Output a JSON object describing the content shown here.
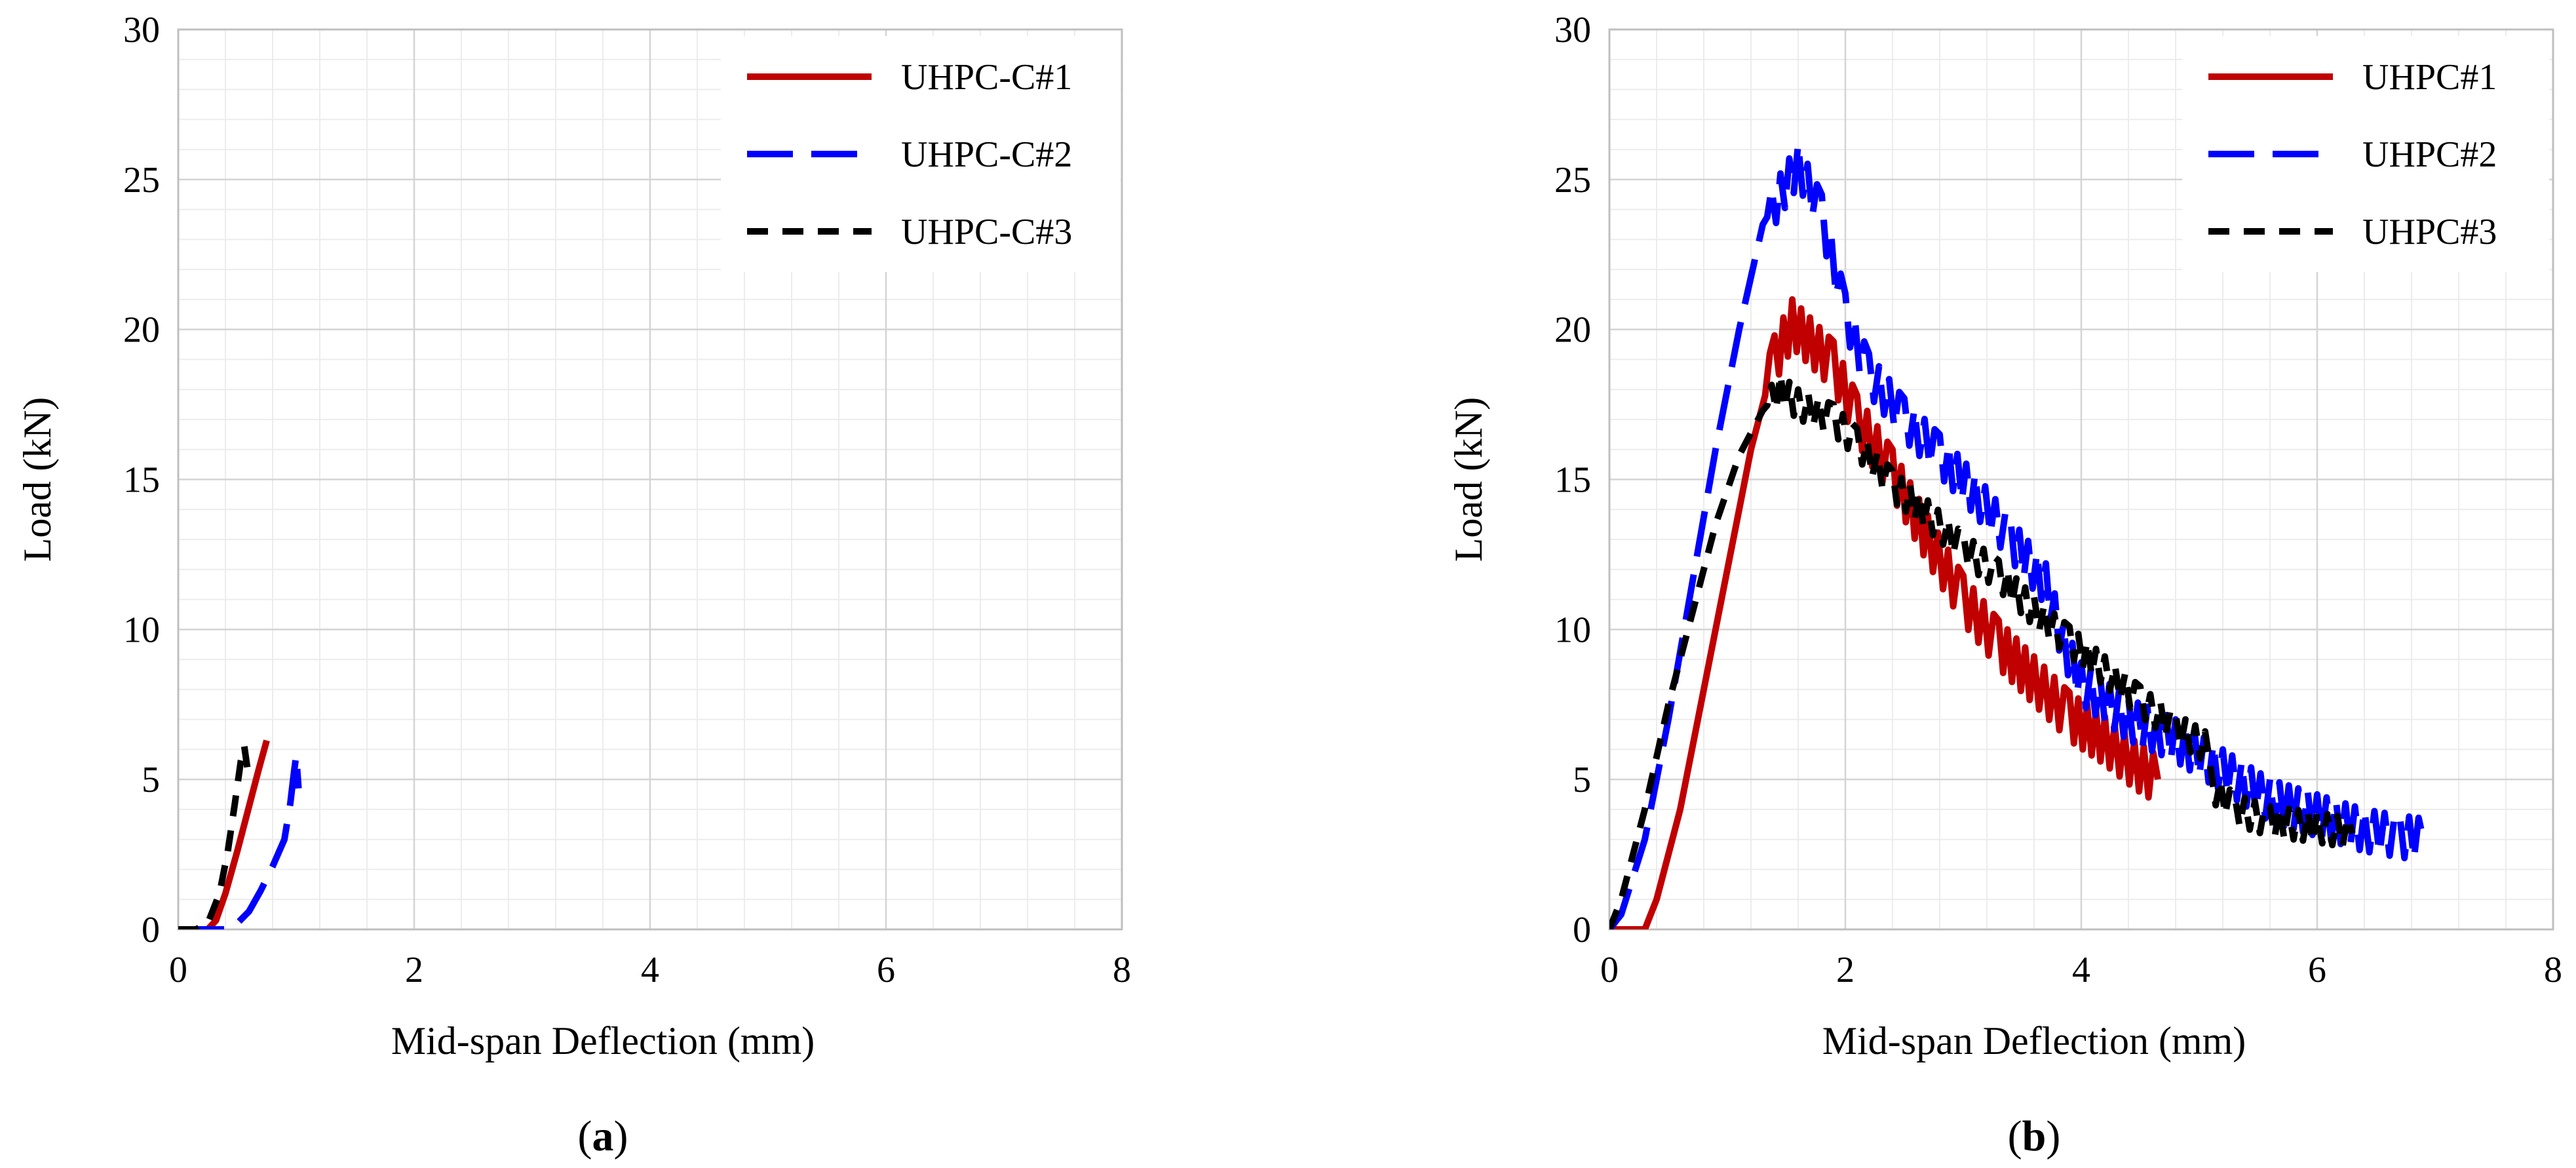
{
  "chart_data": [
    {
      "type": "line",
      "panel_label": "a",
      "caption_open": "(",
      "caption_close": ")",
      "xlabel": "Mid-span Deflection (mm)",
      "ylabel": "Load (kN)",
      "xlim": [
        0,
        8
      ],
      "ylim": [
        0,
        30
      ],
      "xticks": [
        0,
        2,
        4,
        6,
        8
      ],
      "yticks": [
        0,
        5,
        10,
        15,
        20,
        25,
        30
      ],
      "grid": true,
      "legend_position": "top-right",
      "series": [
        {
          "name": "UHPC-C#1",
          "color": "#c00000",
          "style": "solid",
          "points": [
            [
              0,
              0
            ],
            [
              0.25,
              0
            ],
            [
              0.32,
              0.3
            ],
            [
              0.4,
              1.2
            ],
            [
              0.5,
              2.6
            ],
            [
              0.6,
              4.1
            ],
            [
              0.68,
              5.3
            ],
            [
              0.75,
              6.3
            ]
          ]
        },
        {
          "name": "UHPC-C#2",
          "color": "#0000ff",
          "style": "long-dash",
          "points": [
            [
              0,
              0
            ],
            [
              0.3,
              0
            ],
            [
              0.45,
              0
            ],
            [
              0.5,
              0.2
            ],
            [
              0.6,
              0.6
            ],
            [
              0.7,
              1.3
            ],
            [
              0.8,
              2.1
            ],
            [
              0.9,
              3.0
            ],
            [
              0.95,
              4.2
            ],
            [
              0.98,
              5.2
            ],
            [
              1.0,
              5.8
            ],
            [
              1.02,
              4.7
            ]
          ]
        },
        {
          "name": "UHPC-C#3",
          "color": "#000000",
          "style": "short-dash",
          "points": [
            [
              0,
              0
            ],
            [
              0.15,
              0
            ],
            [
              0.25,
              0.2
            ],
            [
              0.35,
              1.2
            ],
            [
              0.42,
              2.6
            ],
            [
              0.48,
              4.2
            ],
            [
              0.53,
              5.6
            ],
            [
              0.56,
              6.1
            ],
            [
              0.6,
              5.0
            ]
          ]
        }
      ]
    },
    {
      "type": "line",
      "panel_label": "b",
      "caption_open": "(",
      "caption_close": ")",
      "xlabel": "Mid-span Deflection (mm)",
      "ylabel": "Load (kN)",
      "xlim": [
        0,
        8
      ],
      "ylim": [
        0,
        30
      ],
      "xticks": [
        0,
        2,
        4,
        6,
        8
      ],
      "yticks": [
        0,
        5,
        10,
        15,
        20,
        25,
        30
      ],
      "grid": true,
      "legend_position": "top-right",
      "series": [
        {
          "name": "UHPC#1",
          "color": "#c00000",
          "style": "solid",
          "points": [
            [
              0,
              0
            ],
            [
              0.3,
              0
            ],
            [
              0.4,
              1
            ],
            [
              0.6,
              4
            ],
            [
              0.8,
              8
            ],
            [
              1.0,
              12
            ],
            [
              1.2,
              16
            ],
            [
              1.4,
              19
            ],
            [
              1.55,
              20.2
            ],
            [
              1.7,
              19.6
            ],
            [
              1.9,
              18.8
            ],
            [
              2.1,
              17.0
            ],
            [
              2.4,
              15.2
            ],
            [
              2.7,
              13.0
            ],
            [
              3.0,
              11.0
            ],
            [
              3.3,
              9.5
            ],
            [
              3.6,
              8.3
            ],
            [
              3.9,
              7.1
            ],
            [
              4.2,
              6.3
            ],
            [
              4.45,
              5.5
            ],
            [
              4.65,
              5.0
            ]
          ],
          "oscillation": 0.8
        },
        {
          "name": "UHPC#2",
          "color": "#0000ff",
          "style": "long-dash",
          "points": [
            [
              0,
              0
            ],
            [
              0.1,
              0.5
            ],
            [
              0.3,
              3
            ],
            [
              0.5,
              7
            ],
            [
              0.7,
              11.5
            ],
            [
              0.9,
              16
            ],
            [
              1.1,
              20
            ],
            [
              1.3,
              23.5
            ],
            [
              1.45,
              24.5
            ],
            [
              1.6,
              25.5
            ],
            [
              1.8,
              23.8
            ],
            [
              2.0,
              20.5
            ],
            [
              2.2,
              18.5
            ],
            [
              2.5,
              17.0
            ],
            [
              2.8,
              15.8
            ],
            [
              3.1,
              14.5
            ],
            [
              3.4,
              13.0
            ],
            [
              3.7,
              11.5
            ],
            [
              3.85,
              9.5
            ],
            [
              4.0,
              8.2
            ],
            [
              4.4,
              7.0
            ],
            [
              4.8,
              6.3
            ],
            [
              5.2,
              5.3
            ],
            [
              5.6,
              4.3
            ],
            [
              6.0,
              3.8
            ],
            [
              6.4,
              3.3
            ],
            [
              6.7,
              3.1
            ],
            [
              6.9,
              3.0
            ]
          ],
          "oscillation": 0.7
        },
        {
          "name": "UHPC#3",
          "color": "#000000",
          "style": "short-dash",
          "points": [
            [
              0,
              0
            ],
            [
              0.1,
              1
            ],
            [
              0.3,
              4
            ],
            [
              0.5,
              7.5
            ],
            [
              0.7,
              10.5
            ],
            [
              0.9,
              13.5
            ],
            [
              1.1,
              15.8
            ],
            [
              1.3,
              17.3
            ],
            [
              1.45,
              18.0
            ],
            [
              1.6,
              17.5
            ],
            [
              1.9,
              17.0
            ],
            [
              2.1,
              16.2
            ],
            [
              2.4,
              14.8
            ],
            [
              2.7,
              13.8
            ],
            [
              3.0,
              12.7
            ],
            [
              3.3,
              11.8
            ],
            [
              3.6,
              10.6
            ],
            [
              3.9,
              9.6
            ],
            [
              4.2,
              8.6
            ],
            [
              4.5,
              7.6
            ],
            [
              4.8,
              6.7
            ],
            [
              5.05,
              6.1
            ],
            [
              5.1,
              4.8
            ],
            [
              5.3,
              4.0
            ],
            [
              5.6,
              3.6
            ],
            [
              6.0,
              3.4
            ],
            [
              6.3,
              3.2
            ]
          ],
          "oscillation": 0.5
        }
      ]
    }
  ]
}
